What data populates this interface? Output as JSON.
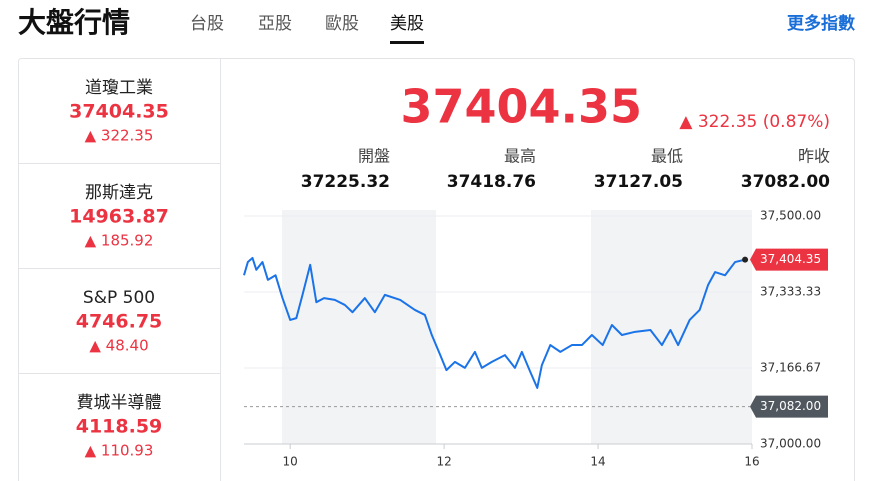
{
  "header": {
    "title": "大盤行情",
    "tabs": [
      "台股",
      "亞股",
      "歐股",
      "美股"
    ],
    "active_tab": 3,
    "more": "更多指數"
  },
  "indices": [
    {
      "name": "道瓊工業",
      "price": "37404.35",
      "change": "▲ 322.35"
    },
    {
      "name": "那斯達克",
      "price": "14963.87",
      "change": "▲ 185.92"
    },
    {
      "name": "S&P 500",
      "price": "4746.75",
      "change": "▲ 48.40"
    },
    {
      "name": "費城半導體",
      "price": "4118.59",
      "change": "▲ 110.93"
    }
  ],
  "quote": {
    "price": "37404.35",
    "change": "▲ 322.35 (0.87%)",
    "stats": [
      {
        "label": "開盤",
        "value": "37225.32"
      },
      {
        "label": "最高",
        "value": "37418.76"
      },
      {
        "label": "最低",
        "value": "37127.05"
      },
      {
        "label": "昨收",
        "value": "37082.00"
      }
    ]
  },
  "chart_data": {
    "type": "line",
    "x": [
      9.4,
      9.45,
      9.51,
      9.56,
      9.64,
      9.71,
      9.81,
      9.9,
      10.0,
      10.08,
      10.16,
      10.26,
      10.34,
      10.44,
      10.58,
      10.71,
      10.81,
      10.97,
      11.1,
      11.23,
      11.43,
      11.62,
      11.75,
      11.84,
      11.95,
      12.03,
      12.14,
      12.27,
      12.4,
      12.49,
      12.62,
      12.79,
      12.92,
      13.01,
      13.12,
      13.21,
      13.27,
      13.38,
      13.51,
      13.66,
      13.79,
      13.92,
      14.06,
      14.18,
      14.31,
      14.48,
      14.68,
      14.83,
      14.94,
      15.04,
      15.19,
      15.32,
      15.43,
      15.52,
      15.65,
      15.78,
      15.91
    ],
    "series": [
      {
        "color": "#1a73e8",
        "values": [
          37370,
          37399,
          37408,
          37382,
          37399,
          37360,
          37370,
          37320,
          37272,
          37276,
          37327,
          37393,
          37311,
          37320,
          37316,
          37305,
          37289,
          37320,
          37289,
          37327,
          37316,
          37294,
          37283,
          37239,
          37195,
          37162,
          37180,
          37167,
          37202,
          37167,
          37180,
          37195,
          37167,
          37202,
          37158,
          37123,
          37173,
          37217,
          37202,
          37217,
          37217,
          37239,
          37217,
          37261,
          37239,
          37246,
          37250,
          37217,
          37250,
          37217,
          37272,
          37294,
          37349,
          37377,
          37370,
          37399,
          37404.35
        ]
      }
    ],
    "xlim": [
      9.4,
      16.0
    ],
    "xticks": [
      10,
      12,
      14,
      16
    ],
    "ylim": [
      37000,
      37500
    ],
    "yticks": [
      {
        "value": 37000,
        "label": "37,000.00"
      },
      {
        "value": 37166.67,
        "label": "37,166.67"
      },
      {
        "value": 37333.33,
        "label": "37,333.33"
      },
      {
        "value": 37500,
        "label": "37,500.00"
      }
    ],
    "grid": true,
    "current_tag": {
      "value": 37404.35,
      "label": "37,404.35",
      "color": "#eb3341"
    },
    "previous_close_tag": {
      "value": 37082,
      "label": "37,082.00",
      "color": "#50575f"
    }
  }
}
